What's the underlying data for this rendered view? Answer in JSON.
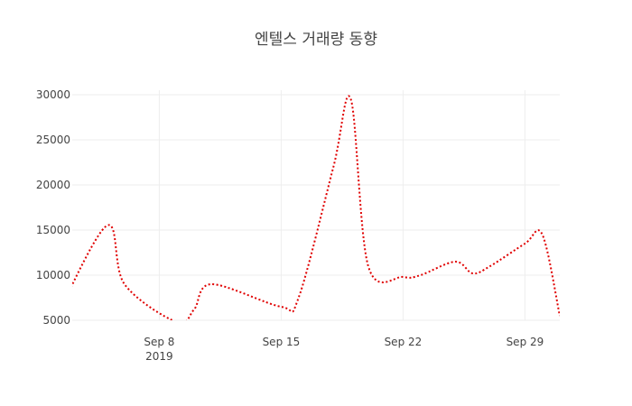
{
  "chart_data": {
    "type": "line",
    "title": "엔텔스 거래량 동향",
    "xlabel": "",
    "ylabel": "",
    "x_range": [
      "2019-09-03",
      "2019-10-01"
    ],
    "ylim": [
      5000,
      30500
    ],
    "grid": true,
    "y_ticks": [
      {
        "value": 5000,
        "label": "5000"
      },
      {
        "value": 10000,
        "label": "10000"
      },
      {
        "value": 15000,
        "label": "15000"
      },
      {
        "value": 20000,
        "label": "20000"
      },
      {
        "value": 25000,
        "label": "25000"
      },
      {
        "value": 30000,
        "label": "30000"
      }
    ],
    "x_ticks": [
      {
        "date": "2019-09-08",
        "label": "Sep 8",
        "sublabel": "2019"
      },
      {
        "date": "2019-09-15",
        "label": "Sep 15",
        "sublabel": ""
      },
      {
        "date": "2019-09-22",
        "label": "Sep 22",
        "sublabel": ""
      },
      {
        "date": "2019-09-29",
        "label": "Sep 29",
        "sublabel": ""
      }
    ],
    "series": [
      {
        "name": "",
        "color": "#e00000",
        "line_style": "dotted",
        "smoothing": "spline",
        "points": [
          {
            "x": "2019-09-02",
            "y": 5000
          },
          {
            "x": "2019-09-05",
            "y": 15500
          },
          {
            "x": "2019-09-06",
            "y": 9000
          },
          {
            "x": "2019-09-09",
            "y": 4800
          },
          {
            "x": "2019-09-10",
            "y": 6200
          },
          {
            "x": "2019-09-11",
            "y": 9000
          },
          {
            "x": "2019-09-15",
            "y": 6500
          },
          {
            "x": "2019-09-16",
            "y": 7500
          },
          {
            "x": "2019-09-18",
            "y": 22000
          },
          {
            "x": "2019-09-19",
            "y": 29500
          },
          {
            "x": "2019-09-20",
            "y": 11000
          },
          {
            "x": "2019-09-22",
            "y": 9800
          },
          {
            "x": "2019-09-23",
            "y": 10000
          },
          {
            "x": "2019-09-25",
            "y": 11500
          },
          {
            "x": "2019-09-26",
            "y": 10200
          },
          {
            "x": "2019-09-27",
            "y": 11000
          },
          {
            "x": "2019-09-29",
            "y": 13500
          },
          {
            "x": "2019-09-30",
            "y": 14500
          },
          {
            "x": "2019-10-01",
            "y": 5500
          }
        ]
      }
    ]
  }
}
